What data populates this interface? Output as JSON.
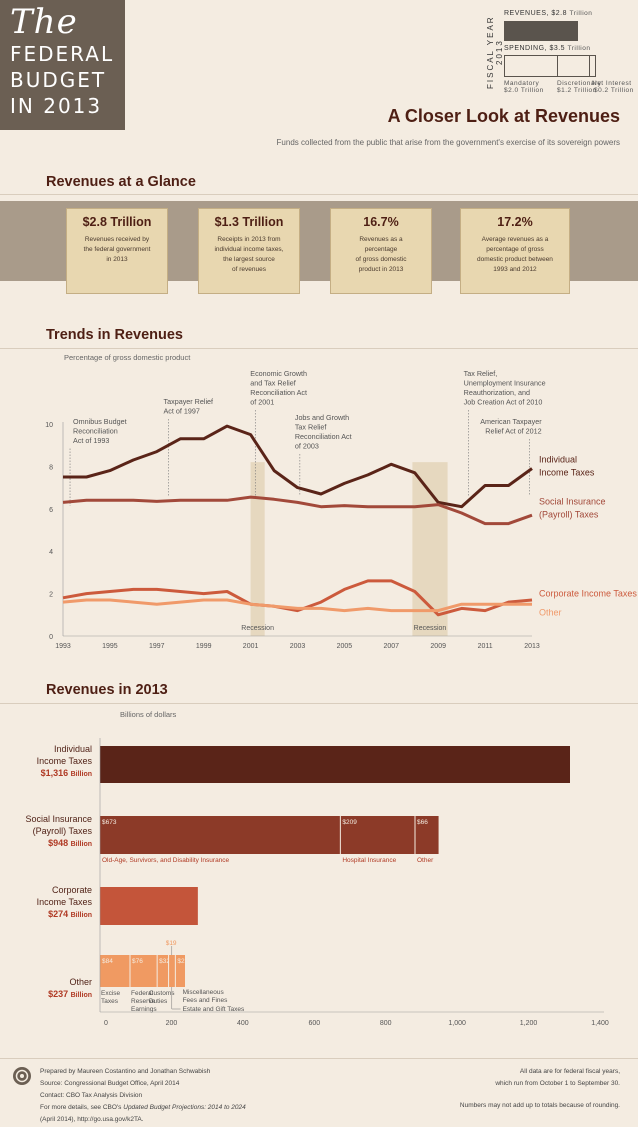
{
  "logo": {
    "the": "The",
    "line1": "FEDERAL",
    "line2": "BUDGET",
    "line3": "IN 2013"
  },
  "fiscal": {
    "label": "FISCAL YEAR 2013",
    "rev": "REVENUES, $2.8",
    "rev_unit": "Trillion",
    "spend": "SPENDING, $3.5",
    "spend_unit": "Trillion",
    "parts": [
      {
        "name": "Mandatory",
        "value": "$2.0 Trillion"
      },
      {
        "name": "Discretionary",
        "value": "$1.2 Trillion"
      },
      {
        "name": "Net Interest",
        "value": "$0.2 Trillion"
      }
    ]
  },
  "header": {
    "title": "A Closer Look at Revenues",
    "subtitle": "Funds collected from the public that arise from the government's exercise of its sovereign powers"
  },
  "glance": {
    "title": "Revenues at a Glance",
    "cards": [
      {
        "value": "$2.8 Trillion",
        "l1": "Revenues received by",
        "l2": "the federal government",
        "l3": "in 2013",
        "l4": ""
      },
      {
        "value": "$1.3 Trillion",
        "l1": "Receipts in 2013 from",
        "l2": "individual income taxes,",
        "l3": "the largest source",
        "l4": "of revenues"
      },
      {
        "value": "16.7%",
        "l1": "Revenues as a",
        "l2": "percentage",
        "l3": "of gross domestic",
        "l4": "product in 2013"
      },
      {
        "value": "17.2%",
        "l1": "Average revenues as a",
        "l2": "percentage of gross",
        "l3": "domestic product between",
        "l4": "1993 and 2012"
      }
    ]
  },
  "trends": {
    "title": "Trends in Revenues",
    "subtitle": "Percentage of gross domestic product"
  },
  "bars": {
    "title": "Revenues in 2013",
    "subtitle": "Billions of dollars"
  },
  "chart_data": [
    {
      "type": "line",
      "title": "Trends in Revenues",
      "ylabel": "Percentage of gross domestic product",
      "x": [
        1993,
        1994,
        1995,
        1996,
        1997,
        1998,
        1999,
        2000,
        2001,
        2002,
        2003,
        2004,
        2005,
        2006,
        2007,
        2008,
        2009,
        2010,
        2011,
        2012,
        2013
      ],
      "xticks": [
        1993,
        1995,
        1997,
        1999,
        2001,
        2003,
        2005,
        2007,
        2009,
        2011,
        2013
      ],
      "yticks": [
        0,
        2,
        4,
        6,
        8,
        10
      ],
      "ylim": [
        0,
        10.5
      ],
      "series": [
        {
          "name": "Individual Income Taxes",
          "color": "#5a2418",
          "values": [
            7.5,
            7.5,
            7.8,
            8.3,
            8.7,
            9.3,
            9.3,
            9.9,
            9.5,
            7.8,
            7.0,
            6.7,
            7.2,
            7.6,
            8.1,
            7.7,
            6.3,
            6.1,
            7.1,
            7.1,
            7.9
          ]
        },
        {
          "name": "Social Insurance (Payroll) Taxes",
          "color": "#a2493a",
          "values": [
            6.3,
            6.4,
            6.4,
            6.4,
            6.35,
            6.4,
            6.4,
            6.4,
            6.55,
            6.45,
            6.3,
            6.1,
            6.15,
            6.1,
            6.1,
            6.1,
            6.2,
            5.8,
            5.3,
            5.3,
            5.7
          ]
        },
        {
          "name": "Corporate Income Taxes",
          "color": "#cc5a3c",
          "values": [
            1.8,
            2.0,
            2.1,
            2.2,
            2.2,
            2.1,
            2.0,
            2.1,
            1.5,
            1.4,
            1.2,
            1.6,
            2.2,
            2.6,
            2.6,
            2.1,
            1.0,
            1.3,
            1.2,
            1.6,
            1.7
          ]
        },
        {
          "name": "Other",
          "color": "#f09a6a",
          "values": [
            1.6,
            1.7,
            1.7,
            1.6,
            1.5,
            1.6,
            1.7,
            1.7,
            1.5,
            1.4,
            1.3,
            1.3,
            1.2,
            1.3,
            1.2,
            1.2,
            1.2,
            1.5,
            1.5,
            1.5,
            1.5
          ]
        }
      ],
      "recessions": [
        {
          "label": "Recession",
          "start": 2001,
          "end": 2001.6
        },
        {
          "label": "Recession",
          "start": 2007.9,
          "end": 2009.4
        }
      ],
      "annotations": [
        {
          "lines": [
            "Omnibus Budget",
            "Reconciliation",
            "Act of 1993"
          ],
          "year": 1993.3
        },
        {
          "lines": [
            "Taxpayer Relief",
            "Act of 1997"
          ],
          "year": 1997.5
        },
        {
          "lines": [
            "Economic Growth",
            "and Tax Relief",
            "Reconciliation Act",
            "of 2001"
          ],
          "year": 2001.2
        },
        {
          "lines": [
            "Jobs and Growth",
            "Tax Relief",
            "Reconciliation Act",
            "of 2003"
          ],
          "year": 2003.1
        },
        {
          "lines": [
            "Tax Relief,",
            "Unemployment Insurance",
            "Reauthorization, and",
            "Job Creation Act of 2010"
          ],
          "year": 2010.3
        },
        {
          "lines": [
            "American Taxpayer",
            "Relief Act of 2012"
          ],
          "year": 2012.9
        }
      ]
    },
    {
      "type": "bar",
      "title": "Revenues in 2013",
      "xlabel": "Billions of dollars",
      "xticks": [
        0,
        200,
        400,
        600,
        800,
        1000,
        1200,
        1400
      ],
      "xlim": [
        0,
        1400
      ],
      "categories": [
        {
          "l1": "Individual",
          "l2": "Income Taxes",
          "total": "$1,316",
          "unit": "Billion",
          "value": 1316,
          "segments": [
            {
              "value": 1316,
              "label": "",
              "color": "#5a2418"
            }
          ]
        },
        {
          "l1": "Social Insurance",
          "l2": "(Payroll) Taxes",
          "total": "$948",
          "unit": "Billion",
          "value": 948,
          "segments": [
            {
              "value": 673,
              "label": "$673",
              "name": "Old-Age, Survivors, and Disability Insurance",
              "color": "#8c3a28"
            },
            {
              "value": 209,
              "label": "$209",
              "name": "Hospital Insurance",
              "color": "#8c3a28"
            },
            {
              "value": 66,
              "label": "$66",
              "name": "Other",
              "color": "#8c3a28"
            }
          ]
        },
        {
          "l1": "Corporate",
          "l2": "Income Taxes",
          "total": "$274",
          "unit": "Billion",
          "value": 274,
          "segments": [
            {
              "value": 274,
              "label": "",
              "color": "#c4553a"
            }
          ]
        },
        {
          "l1": "",
          "l2": "Other",
          "total": "$237",
          "unit": "Billion",
          "value": 237,
          "segments": [
            {
              "value": 84,
              "label": "$84",
              "name": "Excise Taxes",
              "color": "#f09a62"
            },
            {
              "value": 76,
              "label": "$76",
              "name": "Federal Reserve Earnings",
              "color": "#f09a62"
            },
            {
              "value": 32,
              "label": "$32",
              "name": "Customs Duties",
              "color": "#f09a62"
            },
            {
              "value": 19,
              "label": "$19",
              "name": "Miscellaneous Fees and Fines",
              "color": "#f09a62"
            },
            {
              "value": 27,
              "label": "$27",
              "name": "Estate and Gift Taxes",
              "color": "#f09a62"
            }
          ]
        }
      ]
    }
  ],
  "bar_labels": {
    "oasdi": "Old-Age, Survivors, and Disability Insurance",
    "hi": "Hospital Insurance",
    "other": "Other",
    "excise": [
      "Excise",
      "Taxes"
    ],
    "fed": [
      "Federal",
      "Reserve",
      "Earnings"
    ],
    "customs": [
      "Customs",
      "Duties"
    ],
    "misc": [
      "Miscellaneous",
      "Fees and Fines"
    ],
    "estate": "Estate and Gift Taxes"
  },
  "footer": {
    "l1": "Prepared by Maureen Costantino and Jonathan Schwabish",
    "l2": "Source: Congressional Budget Office, April 2014",
    "l3": "Contact: CBO Tax Analysis Division",
    "l4a": "For more details, see CBO's ",
    "l4b": "Updated Budget Projections: 2014 to 2024",
    "l5": "(April 2014), http://go.usa.gov/k2TA.",
    "r1": "All data are for federal fiscal years,",
    "r2": "which run from October 1 to September 30.",
    "r3": "Numbers may not add up to totals because of rounding."
  }
}
